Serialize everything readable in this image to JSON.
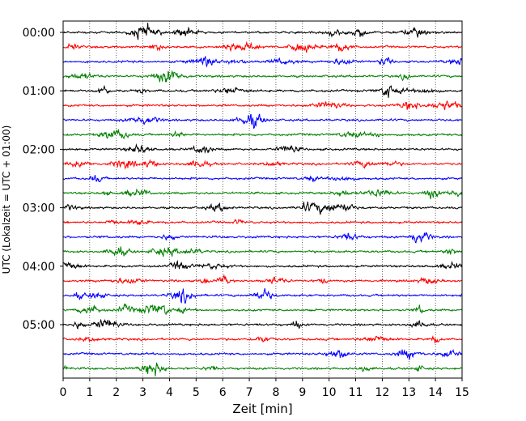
{
  "chart_data": {
    "type": "line",
    "xlabel": "Zeit  [min]",
    "ylabel": "UTC (Lokalzeit = UTC + 01:00)",
    "xlim": [
      0,
      15
    ],
    "x_ticks": [
      "0",
      "1",
      "2",
      "3",
      "4",
      "5",
      "6",
      "7",
      "8",
      "9",
      "10",
      "11",
      "12",
      "13",
      "14",
      "15"
    ],
    "y_ticks": [
      "00:00",
      "01:00",
      "02:00",
      "03:00",
      "04:00",
      "05:00"
    ],
    "grid": {
      "x": true,
      "y": false,
      "style": "dotted"
    },
    "trace_interval_minutes": 15,
    "trace_colors": [
      "#000000",
      "#ff0000",
      "#0000ff",
      "#008000"
    ],
    "series": [
      {
        "start": "00:00",
        "color": "#000000"
      },
      {
        "start": "00:15",
        "color": "#ff0000"
      },
      {
        "start": "00:30",
        "color": "#0000ff"
      },
      {
        "start": "00:45",
        "color": "#008000"
      },
      {
        "start": "01:00",
        "color": "#000000"
      },
      {
        "start": "01:15",
        "color": "#ff0000"
      },
      {
        "start": "01:30",
        "color": "#0000ff"
      },
      {
        "start": "01:45",
        "color": "#008000"
      },
      {
        "start": "02:00",
        "color": "#000000"
      },
      {
        "start": "02:15",
        "color": "#ff0000"
      },
      {
        "start": "02:30",
        "color": "#0000ff"
      },
      {
        "start": "02:45",
        "color": "#008000"
      },
      {
        "start": "03:00",
        "color": "#000000"
      },
      {
        "start": "03:15",
        "color": "#ff0000"
      },
      {
        "start": "03:30",
        "color": "#0000ff"
      },
      {
        "start": "03:45",
        "color": "#008000"
      },
      {
        "start": "04:00",
        "color": "#000000"
      },
      {
        "start": "04:15",
        "color": "#ff0000"
      },
      {
        "start": "04:30",
        "color": "#0000ff"
      },
      {
        "start": "04:45",
        "color": "#008000"
      },
      {
        "start": "05:00",
        "color": "#000000"
      },
      {
        "start": "05:15",
        "color": "#ff0000"
      },
      {
        "start": "05:30",
        "color": "#0000ff"
      },
      {
        "start": "05:45",
        "color": "#008000"
      }
    ]
  }
}
